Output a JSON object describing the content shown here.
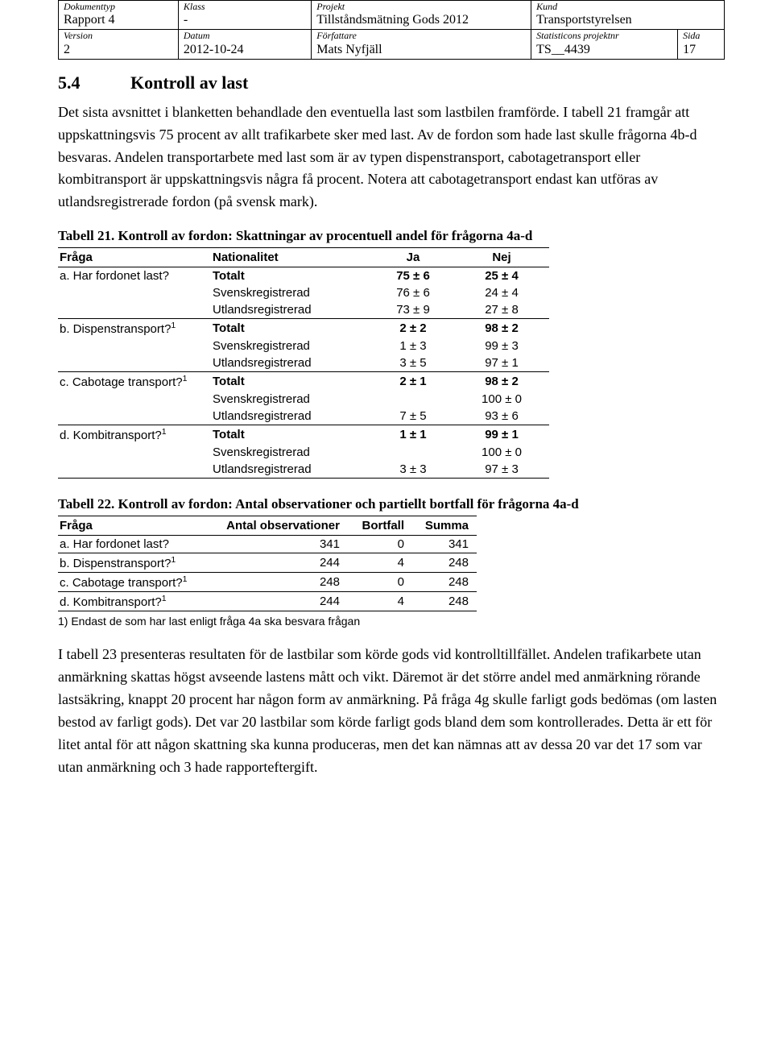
{
  "meta": {
    "row1": {
      "doc_type_label": "Dokumenttyp",
      "doc_type": "Rapport 4",
      "class_label": "Klass",
      "class": "-",
      "project_label": "Projekt",
      "project": "Tillståndsmätning Gods 2012",
      "cust_label": "Kund",
      "cust": "Transportstyrelsen"
    },
    "row2": {
      "version_label": "Version",
      "version": "2",
      "date_label": "Datum",
      "date": "2012-10-24",
      "author_label": "Författare",
      "author": "Mats Nyfjäll",
      "pnr_label": "Statisticons projektnr",
      "pnr": "TS__4439",
      "page_label": "Sida",
      "page": "17"
    }
  },
  "section": {
    "num": "5.4",
    "title": "Kontroll av last"
  },
  "para1": "Det sista avsnittet i blanketten behandlade den eventuella last som lastbilen framförde. I tabell 21 framgår att uppskattningsvis 75 procent av allt trafikarbete sker med last. Av de fordon som hade last skulle frågorna 4b-d besvaras. Andelen transportarbete med last som är av typen dispenstransport, cabotagetransport eller kombitransport är uppskattningsvis några få procent. Notera att cabotagetransport endast kan utföras av utlandsregistrerade fordon (på svensk mark).",
  "t21": {
    "title": "Tabell 21. Kontroll av fordon: Skattningar av procentuell andel för frågorna 4a-d",
    "headers": {
      "fraga": "Fråga",
      "nat": "Nationalitet",
      "ja": "Ja",
      "nej": "Nej"
    },
    "groups": [
      {
        "q": "a. Har fordonet last?",
        "sup": "",
        "rows": [
          {
            "nat": "Totalt",
            "bold": true,
            "ja": "75 ± 6",
            "nej": "25 ± 4"
          },
          {
            "nat": "Svenskregistrerad",
            "bold": false,
            "ja": "76 ± 6",
            "nej": "24 ± 4"
          },
          {
            "nat": "Utlandsregistrerad",
            "bold": false,
            "ja": "73 ± 9",
            "nej": "27 ± 8"
          }
        ]
      },
      {
        "q": "b. Dispenstransport?",
        "sup": "1",
        "rows": [
          {
            "nat": "Totalt",
            "bold": true,
            "ja": "2 ± 2",
            "nej": "98 ± 2"
          },
          {
            "nat": "Svenskregistrerad",
            "bold": false,
            "ja": "1 ± 3",
            "nej": "99 ± 3"
          },
          {
            "nat": "Utlandsregistrerad",
            "bold": false,
            "ja": "3 ± 5",
            "nej": "97 ± 1"
          }
        ]
      },
      {
        "q": "c. Cabotage transport?",
        "sup": "1",
        "rows": [
          {
            "nat": "Totalt",
            "bold": true,
            "ja": "2 ± 1",
            "nej": "98 ± 2"
          },
          {
            "nat": "Svenskregistrerad",
            "bold": false,
            "ja": "",
            "nej": "100 ± 0"
          },
          {
            "nat": "Utlandsregistrerad",
            "bold": false,
            "ja": "7 ± 5",
            "nej": "93 ± 6"
          }
        ]
      },
      {
        "q": "d. Kombitransport?",
        "sup": "1",
        "rows": [
          {
            "nat": "Totalt",
            "bold": true,
            "ja": "1 ± 1",
            "nej": "99 ± 1"
          },
          {
            "nat": "Svenskregistrerad",
            "bold": false,
            "ja": "",
            "nej": "100 ± 0"
          },
          {
            "nat": "Utlandsregistrerad",
            "bold": false,
            "ja": "3 ± 3",
            "nej": "97 ± 3"
          }
        ]
      }
    ]
  },
  "t22": {
    "title": "Tabell 22. Kontroll av fordon: Antal observationer och partiellt bortfall för frågorna 4a-d",
    "headers": {
      "fraga": "Fråga",
      "obs": "Antal observationer",
      "bort": "Bortfall",
      "sum": "Summa"
    },
    "rows": [
      {
        "q": "a. Har fordonet last?",
        "sup": "",
        "obs": "341",
        "bort": "0",
        "sum": "341"
      },
      {
        "q": "b. Dispenstransport?",
        "sup": "1",
        "obs": "244",
        "bort": "4",
        "sum": "248"
      },
      {
        "q": "c. Cabotage transport?",
        "sup": "1",
        "obs": "248",
        "bort": "0",
        "sum": "248"
      },
      {
        "q": "d. Kombitransport?",
        "sup": "1",
        "obs": "244",
        "bort": "4",
        "sum": "248"
      }
    ],
    "footnote": "1) Endast de som har last enligt fråga 4a ska besvara frågan"
  },
  "para2": "I tabell 23 presenteras resultaten för de lastbilar som körde gods vid kontrolltillfället. Andelen trafikarbete utan anmärkning skattas högst avseende lastens mått och vikt. Däremot är det större andel med anmärkning rörande lastsäkring, knappt 20 procent har någon form av anmärkning. På fråga 4g skulle farligt gods bedömas (om lasten bestod av farligt gods). Det var 20 lastbilar som körde farligt gods bland dem som kontrollerades. Detta är ett för litet antal för att någon skattning ska kunna produceras, men det kan nämnas att av dessa 20 var det 17 som var utan anmärkning och 3 hade rapporteftergift."
}
